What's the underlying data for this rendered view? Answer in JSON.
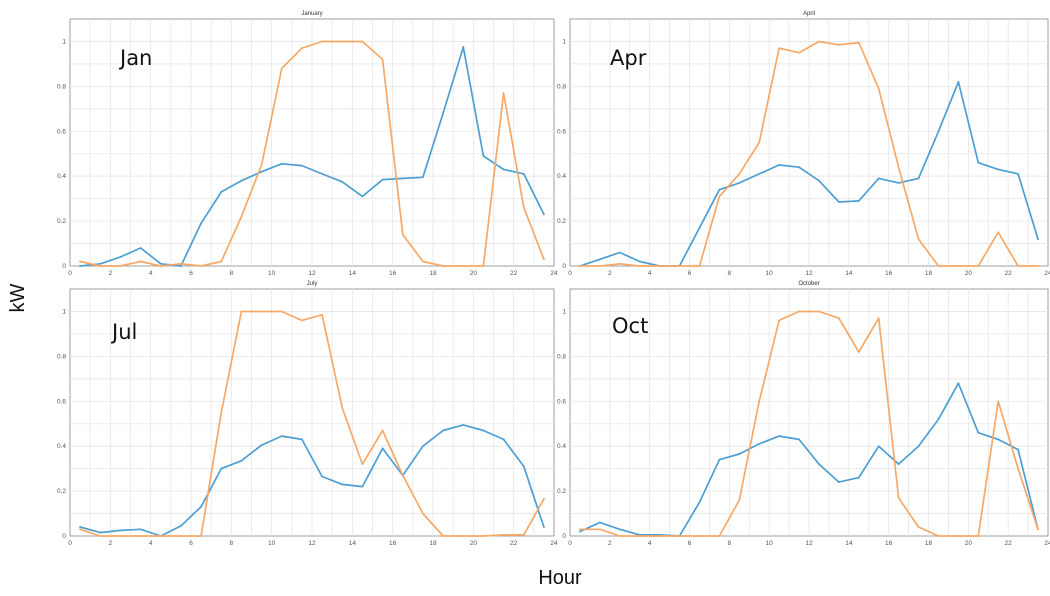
{
  "figure": {
    "xlabel": "Hour",
    "ylabel": "kW",
    "colors": {
      "series_a": "#4C9FD2",
      "series_b": "#F7A866"
    }
  },
  "chart_data": [
    {
      "type": "line",
      "title": "January",
      "label": "Jan",
      "xlim": [
        0,
        24
      ],
      "ylim": [
        0,
        1.1
      ],
      "xticks": [
        "0",
        "2",
        "4",
        "6",
        "8",
        "10",
        "12",
        "14",
        "16",
        "18",
        "20",
        "22",
        "24"
      ],
      "yticks": [
        "0",
        "0.2",
        "0.4",
        "0.6",
        "0.8",
        "1"
      ],
      "grid": true,
      "x": [
        0.5,
        1.5,
        2.5,
        3.5,
        4.5,
        5.5,
        6.5,
        7.5,
        8.5,
        9.5,
        10.5,
        11.5,
        12.5,
        13.5,
        14.5,
        15.5,
        16.5,
        17.5,
        18.5,
        19.5,
        20.5,
        21.5,
        22.5,
        23.5
      ],
      "series": [
        {
          "color": "#4C9FD2",
          "values": [
            0.0,
            0.01,
            0.04,
            0.08,
            0.01,
            0.0,
            0.19,
            0.33,
            0.38,
            0.42,
            0.455,
            0.447,
            0.41,
            0.375,
            0.31,
            0.385,
            0.39,
            0.395,
            0.68,
            0.975,
            0.49,
            0.43,
            0.41,
            0.23
          ]
        },
        {
          "color": "#F7A866",
          "values": [
            0.02,
            0.0,
            0.0,
            0.02,
            0.0,
            0.01,
            0.0,
            0.02,
            0.22,
            0.45,
            0.88,
            0.97,
            1.0,
            1.0,
            1.0,
            0.92,
            0.14,
            0.02,
            0.0,
            0.0,
            0.0,
            0.77,
            0.26,
            0.03
          ]
        }
      ]
    },
    {
      "type": "line",
      "title": "April",
      "label": "Apr",
      "xlim": [
        0,
        24
      ],
      "ylim": [
        0,
        1.1
      ],
      "xticks": [
        "0",
        "2",
        "4",
        "6",
        "8",
        "10",
        "12",
        "14",
        "16",
        "18",
        "20",
        "22",
        "24"
      ],
      "yticks": [
        "0",
        "0.2",
        "0.4",
        "0.6",
        "0.8",
        "1"
      ],
      "grid": true,
      "x": [
        0.5,
        1.5,
        2.5,
        3.5,
        4.5,
        5.5,
        6.5,
        7.5,
        8.5,
        9.5,
        10.5,
        11.5,
        12.5,
        13.5,
        14.5,
        15.5,
        16.5,
        17.5,
        18.5,
        19.5,
        20.5,
        21.5,
        22.5,
        23.5
      ],
      "series": [
        {
          "color": "#4C9FD2",
          "values": [
            0.0,
            0.03,
            0.06,
            0.02,
            0.0,
            0.0,
            0.17,
            0.34,
            0.37,
            0.41,
            0.45,
            0.44,
            0.38,
            0.285,
            0.29,
            0.39,
            0.37,
            0.39,
            0.6,
            0.82,
            0.46,
            0.43,
            0.41,
            0.12
          ]
        },
        {
          "color": "#F7A866",
          "values": [
            0.0,
            0.0,
            0.01,
            0.0,
            0.0,
            0.0,
            0.0,
            0.31,
            0.41,
            0.55,
            0.97,
            0.95,
            1.0,
            0.985,
            0.995,
            0.79,
            0.44,
            0.12,
            0.0,
            0.0,
            0.0,
            0.15,
            0.0,
            0.0
          ]
        }
      ]
    },
    {
      "type": "line",
      "title": "July",
      "label": "Jul",
      "xlim": [
        0,
        24
      ],
      "ylim": [
        0,
        1.1
      ],
      "xticks": [
        "0",
        "2",
        "4",
        "6",
        "8",
        "10",
        "12",
        "14",
        "16",
        "18",
        "20",
        "22",
        "24"
      ],
      "yticks": [
        "0",
        "0.2",
        "0.4",
        "0.6",
        "0.8",
        "1"
      ],
      "grid": true,
      "x": [
        0.5,
        1.5,
        2.5,
        3.5,
        4.5,
        5.5,
        6.5,
        7.5,
        8.5,
        9.5,
        10.5,
        11.5,
        12.5,
        13.5,
        14.5,
        15.5,
        16.5,
        17.5,
        18.5,
        19.5,
        20.5,
        21.5,
        22.5,
        23.5
      ],
      "series": [
        {
          "color": "#4C9FD2",
          "values": [
            0.04,
            0.015,
            0.025,
            0.03,
            0.0,
            0.045,
            0.13,
            0.3,
            0.335,
            0.405,
            0.445,
            0.43,
            0.265,
            0.23,
            0.22,
            0.39,
            0.27,
            0.4,
            0.47,
            0.495,
            0.47,
            0.43,
            0.31,
            0.04
          ]
        },
        {
          "color": "#F7A866",
          "values": [
            0.03,
            0.0,
            0.0,
            0.0,
            0.0,
            0.0,
            0.0,
            0.55,
            1.0,
            1.0,
            1.0,
            0.96,
            0.985,
            0.57,
            0.32,
            0.47,
            0.27,
            0.1,
            0.0,
            0.0,
            0.0,
            0.005,
            0.005,
            0.165
          ]
        }
      ]
    },
    {
      "type": "line",
      "title": "October",
      "label": "Oct",
      "xlim": [
        0,
        24
      ],
      "ylim": [
        0,
        1.1
      ],
      "xticks": [
        "0",
        "2",
        "4",
        "6",
        "8",
        "10",
        "12",
        "14",
        "16",
        "18",
        "20",
        "22",
        "24"
      ],
      "yticks": [
        "0",
        "0.2",
        "0.4",
        "0.6",
        "0.8",
        "1"
      ],
      "grid": true,
      "x": [
        0.5,
        1.5,
        2.5,
        3.5,
        4.5,
        5.5,
        6.5,
        7.5,
        8.5,
        9.5,
        10.5,
        11.5,
        12.5,
        13.5,
        14.5,
        15.5,
        16.5,
        17.5,
        18.5,
        19.5,
        20.5,
        21.5,
        22.5,
        23.5
      ],
      "series": [
        {
          "color": "#4C9FD2",
          "values": [
            0.02,
            0.06,
            0.03,
            0.005,
            0.005,
            0.0,
            0.15,
            0.34,
            0.365,
            0.41,
            0.445,
            0.43,
            0.32,
            0.24,
            0.26,
            0.4,
            0.32,
            0.4,
            0.52,
            0.68,
            0.46,
            0.43,
            0.385,
            0.03
          ]
        },
        {
          "color": "#F7A866",
          "values": [
            0.03,
            0.03,
            0.0,
            0.0,
            0.0,
            0.0,
            0.0,
            0.0,
            0.16,
            0.6,
            0.96,
            1.0,
            1.0,
            0.97,
            0.82,
            0.97,
            0.17,
            0.04,
            0.0,
            0.0,
            0.0,
            0.6,
            0.3,
            0.03
          ]
        }
      ]
    }
  ]
}
